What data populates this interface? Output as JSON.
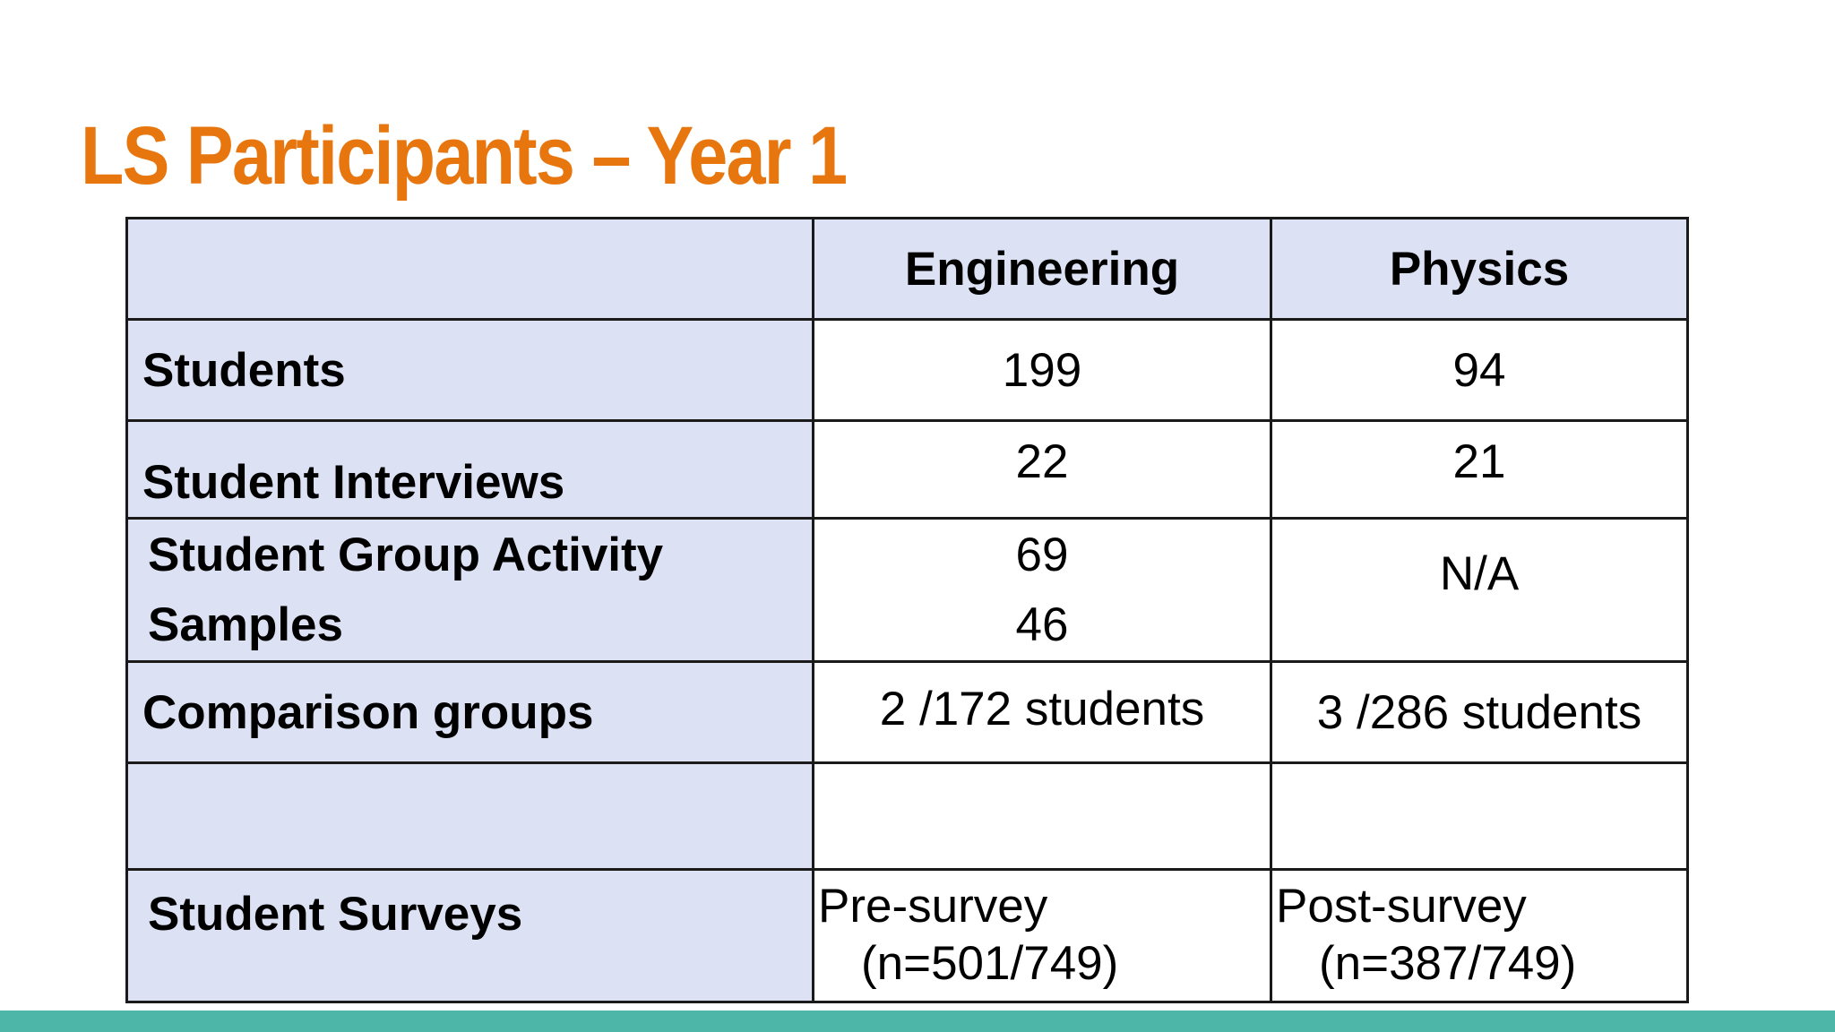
{
  "slide": {
    "title": "LS Participants – Year 1",
    "accent_color": "#e8760f",
    "header_fill_color": "#dce1f4",
    "footer_bar_color": "#4db6a8"
  },
  "table": {
    "columns": [
      "",
      "Engineering",
      "Physics"
    ],
    "rows": [
      {
        "label": "Students",
        "engineering": "199",
        "physics": "94"
      },
      {
        "label": "Student Interviews",
        "engineering": "22",
        "physics": "21"
      },
      {
        "label_lines": [
          "Student Group Activity",
          "Samples"
        ],
        "engineering_lines": [
          "69",
          "46"
        ],
        "physics": "N/A"
      },
      {
        "label": "Comparison groups",
        "engineering": "2 /172 students",
        "physics": "3 /286 students"
      },
      {
        "label": "",
        "engineering": "",
        "physics": ""
      },
      {
        "label": "Student Surveys",
        "engineering_lines": [
          "Pre-survey",
          "(n=501/749)"
        ],
        "physics_lines": [
          "Post-survey",
          "(n=387/749)"
        ]
      }
    ]
  }
}
